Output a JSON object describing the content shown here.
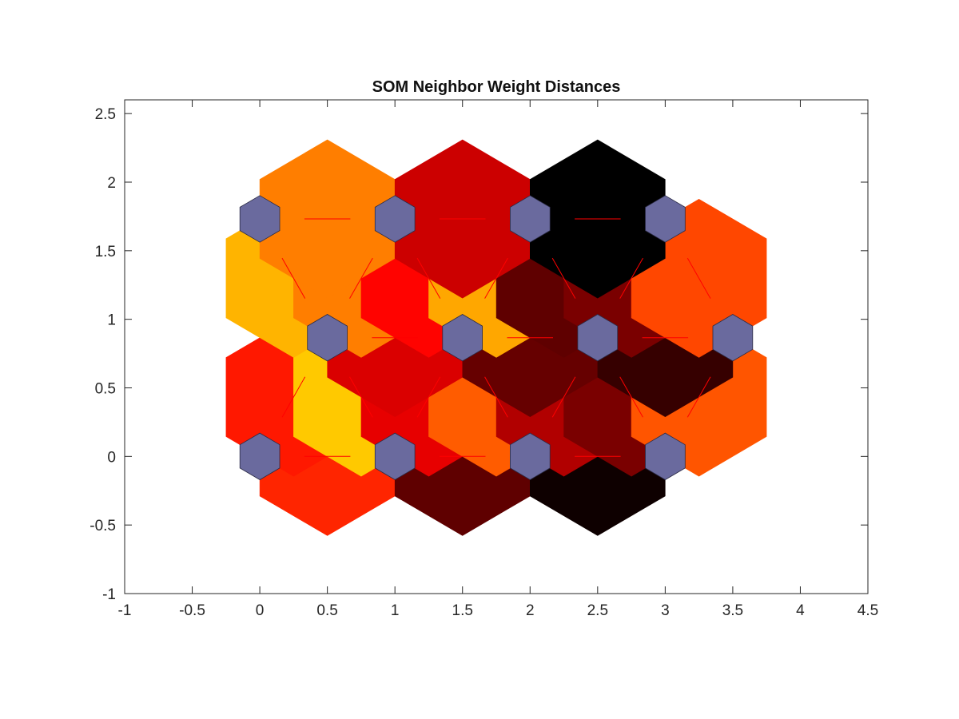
{
  "chart_data": {
    "type": "heatmap",
    "title": "SOM Neighbor Weight Distances",
    "xlabel": "",
    "ylabel": "",
    "xlim": [
      -1,
      4.5
    ],
    "ylim": [
      -1,
      2.6
    ],
    "xticks": [
      "-1",
      "-0.5",
      "0",
      "0.5",
      "1",
      "1.5",
      "2",
      "2.5",
      "3",
      "3.5",
      "4",
      "4.5"
    ],
    "yticks": [
      "-1",
      "-0.5",
      "0",
      "0.5",
      "1",
      "1.5",
      "2",
      "2.5"
    ],
    "grid": false,
    "colormap": "hot",
    "neuron_color": "#6a6a9e",
    "line_color": "#ff0000",
    "neurons": [
      {
        "x": 0,
        "y": 0
      },
      {
        "x": 1,
        "y": 0
      },
      {
        "x": 2,
        "y": 0
      },
      {
        "x": 3,
        "y": 0
      },
      {
        "x": 0.5,
        "y": 0.866
      },
      {
        "x": 1.5,
        "y": 0.866
      },
      {
        "x": 2.5,
        "y": 0.866
      },
      {
        "x": 3.5,
        "y": 0.866
      },
      {
        "x": 0,
        "y": 1.732
      },
      {
        "x": 1,
        "y": 1.732
      },
      {
        "x": 2,
        "y": 1.732
      },
      {
        "x": 3,
        "y": 1.732
      }
    ],
    "edges": [
      {
        "from": [
          0,
          0
        ],
        "to": [
          1,
          0
        ],
        "distance": 0.57
      },
      {
        "from": [
          1,
          0
        ],
        "to": [
          2,
          0
        ],
        "distance": 0.86
      },
      {
        "from": [
          2,
          0
        ],
        "to": [
          3,
          0
        ],
        "distance": 0.98
      },
      {
        "from": [
          0,
          0
        ],
        "to": [
          0.5,
          0.866
        ],
        "distance": 0.59
      },
      {
        "from": [
          1,
          0
        ],
        "to": [
          0.5,
          0.866
        ],
        "distance": 0.33
      },
      {
        "from": [
          1,
          0
        ],
        "to": [
          1.5,
          0.866
        ],
        "distance": 0.66
      },
      {
        "from": [
          2,
          0
        ],
        "to": [
          1.5,
          0.866
        ],
        "distance": 0.49
      },
      {
        "from": [
          2,
          0
        ],
        "to": [
          2.5,
          0.866
        ],
        "distance": 0.74
      },
      {
        "from": [
          3,
          0
        ],
        "to": [
          2.5,
          0.866
        ],
        "distance": 0.82
      },
      {
        "from": [
          3,
          0
        ],
        "to": [
          3.5,
          0.866
        ],
        "distance": 0.5
      },
      {
        "from": [
          0.5,
          0.866
        ],
        "to": [
          1.5,
          0.866
        ],
        "distance": 0.68
      },
      {
        "from": [
          1.5,
          0.866
        ],
        "to": [
          2.5,
          0.866
        ],
        "distance": 0.85
      },
      {
        "from": [
          2.5,
          0.866
        ],
        "to": [
          3.5,
          0.866
        ],
        "distance": 0.92
      },
      {
        "from": [
          0.5,
          0.866
        ],
        "to": [
          0,
          1.732
        ],
        "distance": 0.36
      },
      {
        "from": [
          0.5,
          0.866
        ],
        "to": [
          1,
          1.732
        ],
        "distance": 0.44
      },
      {
        "from": [
          1.5,
          0.866
        ],
        "to": [
          1,
          1.732
        ],
        "distance": 0.62
      },
      {
        "from": [
          1.5,
          0.866
        ],
        "to": [
          2,
          1.732
        ],
        "distance": 0.38
      },
      {
        "from": [
          2.5,
          0.866
        ],
        "to": [
          2,
          1.732
        ],
        "distance": 0.86
      },
      {
        "from": [
          2.5,
          0.866
        ],
        "to": [
          3,
          1.732
        ],
        "distance": 0.82
      },
      {
        "from": [
          3.5,
          0.866
        ],
        "to": [
          3,
          1.732
        ],
        "distance": 0.52
      },
      {
        "from": [
          0,
          1.732
        ],
        "to": [
          1,
          1.732
        ],
        "distance": 0.44
      },
      {
        "from": [
          1,
          1.732
        ],
        "to": [
          2,
          1.732
        ],
        "distance": 0.7
      },
      {
        "from": [
          2,
          1.732
        ],
        "to": [
          3,
          1.732
        ],
        "distance": 1.0
      }
    ]
  }
}
